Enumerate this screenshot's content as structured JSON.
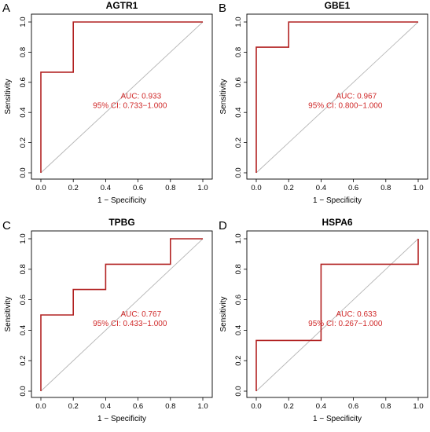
{
  "chart_data": [
    {
      "type": "line",
      "panel_label": "A",
      "title": "AGTR1",
      "xlabel": "1 − Specificity",
      "ylabel": "Sensitivity",
      "xlim": [
        0,
        1
      ],
      "ylim": [
        0,
        1
      ],
      "x_ticks": [
        "0.0",
        "0.2",
        "0.4",
        "0.6",
        "0.8",
        "1.0"
      ],
      "y_ticks": [
        "0.0",
        "0.2",
        "0.4",
        "0.6",
        "0.8",
        "1.0"
      ],
      "roc_curve": {
        "x": [
          0,
          0,
          0.2,
          0.2,
          1
        ],
        "y": [
          0,
          0.667,
          0.667,
          1,
          1
        ]
      },
      "reference_line": {
        "x": [
          0,
          1
        ],
        "y": [
          0,
          1
        ]
      },
      "annotations": [
        "AUC: 0.933",
        "95% CI: 0.733−1.000"
      ],
      "line_color": "#b22222",
      "reference_color": "#b5b5b5"
    },
    {
      "type": "line",
      "panel_label": "B",
      "title": "GBE1",
      "xlabel": "1 − Specificity",
      "ylabel": "Sensitivity",
      "xlim": [
        0,
        1
      ],
      "ylim": [
        0,
        1
      ],
      "x_ticks": [
        "0.0",
        "0.2",
        "0.4",
        "0.6",
        "0.8",
        "1.0"
      ],
      "y_ticks": [
        "0.0",
        "0.2",
        "0.4",
        "0.6",
        "0.8",
        "1.0"
      ],
      "roc_curve": {
        "x": [
          0,
          0,
          0.2,
          0.2,
          1
        ],
        "y": [
          0,
          0.833,
          0.833,
          1,
          1
        ]
      },
      "reference_line": {
        "x": [
          0,
          1
        ],
        "y": [
          0,
          1
        ]
      },
      "annotations": [
        "AUC: 0.967",
        "95% CI: 0.800−1.000"
      ],
      "line_color": "#b22222",
      "reference_color": "#b5b5b5"
    },
    {
      "type": "line",
      "panel_label": "C",
      "title": "TPBG",
      "xlabel": "1 − Specificity",
      "ylabel": "Sensitivity",
      "xlim": [
        0,
        1
      ],
      "ylim": [
        0,
        1
      ],
      "x_ticks": [
        "0.0",
        "0.2",
        "0.4",
        "0.6",
        "0.8",
        "1.0"
      ],
      "y_ticks": [
        "0.0",
        "0.2",
        "0.4",
        "0.6",
        "0.8",
        "1.0"
      ],
      "roc_curve": {
        "x": [
          0,
          0,
          0.2,
          0.2,
          0.4,
          0.4,
          0.8,
          0.8,
          1
        ],
        "y": [
          0,
          0.5,
          0.5,
          0.667,
          0.667,
          0.833,
          0.833,
          1,
          1
        ]
      },
      "reference_line": {
        "x": [
          0,
          1
        ],
        "y": [
          0,
          1
        ]
      },
      "annotations": [
        "AUC: 0.767",
        "95% CI: 0.433−1.000"
      ],
      "line_color": "#b22222",
      "reference_color": "#b5b5b5"
    },
    {
      "type": "line",
      "panel_label": "D",
      "title": "HSPA6",
      "xlabel": "1 − Specificity",
      "ylabel": "Sensitivity",
      "xlim": [
        0,
        1
      ],
      "ylim": [
        0,
        1
      ],
      "x_ticks": [
        "0.0",
        "0.2",
        "0.4",
        "0.6",
        "0.8",
        "1.0"
      ],
      "y_ticks": [
        "0.0",
        "0.2",
        "0.4",
        "0.6",
        "0.8",
        "1.0"
      ],
      "roc_curve": {
        "x": [
          0,
          0,
          0.4,
          0.4,
          1,
          1
        ],
        "y": [
          0,
          0.333,
          0.333,
          0.833,
          0.833,
          1
        ]
      },
      "reference_line": {
        "x": [
          0,
          1
        ],
        "y": [
          0,
          1
        ]
      },
      "annotations": [
        "AUC: 0.633",
        "95% CI: 0.267−1.000"
      ],
      "line_color": "#b22222",
      "reference_color": "#b5b5b5"
    }
  ]
}
